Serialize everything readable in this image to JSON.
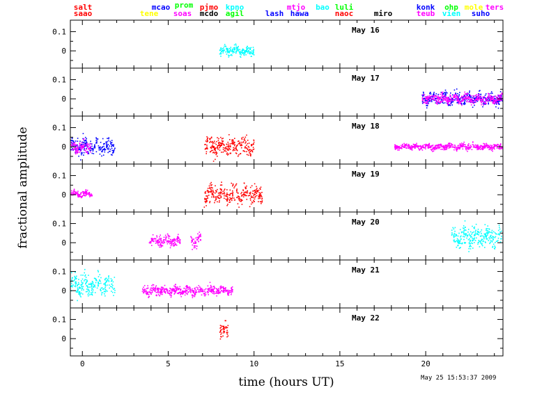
{
  "chart_data": {
    "type": "scatter",
    "xlabel": "time (hours UT)",
    "ylabel": "fractional amplitude",
    "timestamp": "May 25 15:53:37 2009",
    "xlim": [
      -0.7,
      24.5
    ],
    "x_ticks": [
      "0",
      "5",
      "10",
      "15",
      "20"
    ],
    "y_ticks": [
      "0.1",
      "0"
    ],
    "ylim_per_panel": [
      -0.09,
      0.16
    ],
    "observatories": [
      {
        "name": "salt",
        "color": "#ff0000"
      },
      {
        "name": "saao",
        "color": "#ff0000"
      },
      {
        "name": "tene",
        "color": "#ffff00"
      },
      {
        "name": "mcao",
        "color": "#0000ff"
      },
      {
        "name": "prom",
        "color": "#00ff00"
      },
      {
        "name": "soas",
        "color": "#ff00ff"
      },
      {
        "name": "pjmo",
        "color": "#ff0000"
      },
      {
        "name": "mcdo",
        "color": "#000000"
      },
      {
        "name": "kpno",
        "color": "#00ffff"
      },
      {
        "name": "agil",
        "color": "#00ff00"
      },
      {
        "name": "lash",
        "color": "#0000ff"
      },
      {
        "name": "mtjo",
        "color": "#ff00ff"
      },
      {
        "name": "hawa",
        "color": "#0000ff"
      },
      {
        "name": "bao",
        "color": "#00ffff"
      },
      {
        "name": "luli",
        "color": "#00ff00"
      },
      {
        "name": "naoc",
        "color": "#ff0000"
      },
      {
        "name": "miro",
        "color": "#000000"
      },
      {
        "name": "konk",
        "color": "#0000ff"
      },
      {
        "name": "teub",
        "color": "#ff00ff"
      },
      {
        "name": "ohp",
        "color": "#00ff00"
      },
      {
        "name": "vien",
        "color": "#00ffff"
      },
      {
        "name": "mole",
        "color": "#ffff00"
      },
      {
        "name": "ters",
        "color": "#ff00ff"
      },
      {
        "name": "suho",
        "color": "#0000ff"
      }
    ],
    "panels": [
      {
        "day": "May 16",
        "segments": [
          {
            "start": 8.0,
            "end": 10.0,
            "amp": 0.022,
            "color": "#00ffff",
            "mean": 0.0
          }
        ]
      },
      {
        "day": "May 17",
        "segments": [
          {
            "start": 19.8,
            "end": 24.5,
            "amp": 0.03,
            "color": "#0000ff",
            "mean": 0.0
          },
          {
            "start": 19.8,
            "end": 24.5,
            "amp": 0.022,
            "color": "#ff00ff",
            "mean": 0.0
          }
        ]
      },
      {
        "day": "May 18",
        "segments": [
          {
            "start": -0.7,
            "end": 1.9,
            "amp": 0.04,
            "color": "#0000ff",
            "mean": 0.0
          },
          {
            "start": -0.7,
            "end": 0.5,
            "amp": 0.025,
            "color": "#ff00ff",
            "mean": 0.0
          },
          {
            "start": 7.1,
            "end": 10.0,
            "amp": 0.045,
            "color": "#ff0000",
            "mean": 0.0
          },
          {
            "start": 18.2,
            "end": 24.5,
            "amp": 0.014,
            "color": "#ff00ff",
            "mean": 0.0
          }
        ]
      },
      {
        "day": "May 19",
        "segments": [
          {
            "start": -0.7,
            "end": 0.6,
            "amp": 0.015,
            "color": "#ff00ff",
            "mean": 0.005
          },
          {
            "start": 7.1,
            "end": 10.5,
            "amp": 0.045,
            "color": "#ff0000",
            "mean": 0.0
          }
        ]
      },
      {
        "day": "May 20",
        "segments": [
          {
            "start": 3.9,
            "end": 5.7,
            "amp": 0.025,
            "color": "#ff00ff",
            "mean": 0.01
          },
          {
            "start": 6.3,
            "end": 6.9,
            "amp": 0.03,
            "color": "#ff00ff",
            "mean": 0.01
          },
          {
            "start": 21.5,
            "end": 24.5,
            "amp": 0.05,
            "color": "#00ffff",
            "mean": 0.03
          }
        ]
      },
      {
        "day": "May 21",
        "segments": [
          {
            "start": -0.7,
            "end": 1.9,
            "amp": 0.05,
            "color": "#00ffff",
            "mean": 0.03
          },
          {
            "start": 3.5,
            "end": 8.8,
            "amp": 0.022,
            "color": "#ff00ff",
            "mean": 0.0
          }
        ]
      },
      {
        "day": "May 22",
        "segments": [
          {
            "start": 8.0,
            "end": 8.5,
            "amp": 0.045,
            "color": "#ff0000",
            "mean": 0.04
          }
        ]
      }
    ]
  }
}
